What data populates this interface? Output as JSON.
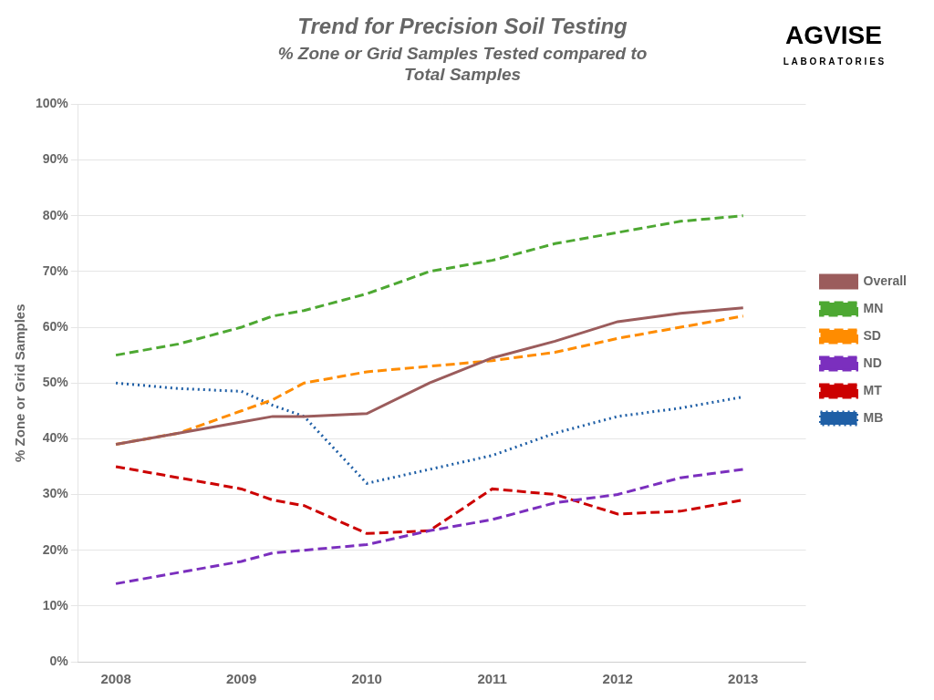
{
  "chart_data": {
    "type": "line",
    "title": "Trend for Precision Soil Testing",
    "subtitle": [
      "% Zone or Grid Samples Tested compared to",
      "Total Samples"
    ],
    "annotations": [
      "AGVISE",
      "L A B O R A T O R I E S"
    ],
    "y_label": "% Zone or Grid Samples",
    "x": [
      2008,
      2008.5,
      2009,
      2009.25,
      2009.5,
      2010,
      2010.5,
      2011,
      2011.5,
      2012,
      2012.5,
      2013
    ],
    "series": [
      {
        "name": "Overall",
        "color": "#9B5C5C",
        "line_style": "solid",
        "values": [
          0.39,
          0.41,
          0.43,
          0.44,
          0.44,
          0.445,
          0.5,
          0.545,
          0.575,
          0.61,
          0.625,
          0.635
        ]
      },
      {
        "name": "MN",
        "color": "#4DA832",
        "line_style": "dashed",
        "values": [
          0.55,
          0.57,
          0.6,
          0.62,
          0.63,
          0.66,
          0.7,
          0.72,
          0.75,
          0.77,
          0.79,
          0.8
        ]
      },
      {
        "name": "SD",
        "color": "#FF8C00",
        "line_style": "dashed",
        "values": [
          0.39,
          0.41,
          0.45,
          0.47,
          0.5,
          0.52,
          0.53,
          0.54,
          0.555,
          0.58,
          0.6,
          0.62
        ]
      },
      {
        "name": "ND",
        "color": "#7B2FBE",
        "line_style": "dashed",
        "values": [
          0.14,
          0.16,
          0.18,
          0.195,
          0.2,
          0.21,
          0.235,
          0.255,
          0.285,
          0.3,
          0.33,
          0.345
        ]
      },
      {
        "name": "MT",
        "color": "#CC0000",
        "line_style": "dashed",
        "values": [
          0.35,
          0.33,
          0.31,
          0.29,
          0.28,
          0.23,
          0.235,
          0.31,
          0.3,
          0.265,
          0.27,
          0.29
        ]
      },
      {
        "name": "MB",
        "color": "#1F5FA6",
        "line_style": "dotted",
        "values": [
          0.5,
          0.49,
          0.485,
          0.46,
          0.44,
          0.32,
          0.345,
          0.37,
          0.41,
          0.44,
          0.455,
          0.475
        ]
      }
    ],
    "xlim": [
      2007.7,
      2013.5
    ],
    "xticks": [
      2008,
      2009,
      2010,
      2011,
      2012,
      2013
    ],
    "ylim": [
      0,
      1.0
    ],
    "yticks": [
      {
        "value": 0.0,
        "label": "0%"
      },
      {
        "value": 0.1,
        "label": "10%"
      },
      {
        "value": 0.2,
        "label": "20%"
      },
      {
        "value": 0.3,
        "label": "30%"
      },
      {
        "value": 0.4,
        "label": "40%"
      },
      {
        "value": 0.5,
        "label": "50%"
      },
      {
        "value": 0.6,
        "label": "60%"
      },
      {
        "value": 0.7,
        "label": "70%"
      },
      {
        "value": 0.8,
        "label": "80%"
      },
      {
        "value": 0.9,
        "label": "90%"
      },
      {
        "value": 1.0,
        "label": "100%"
      }
    ],
    "grid": "y",
    "legend": "right"
  }
}
